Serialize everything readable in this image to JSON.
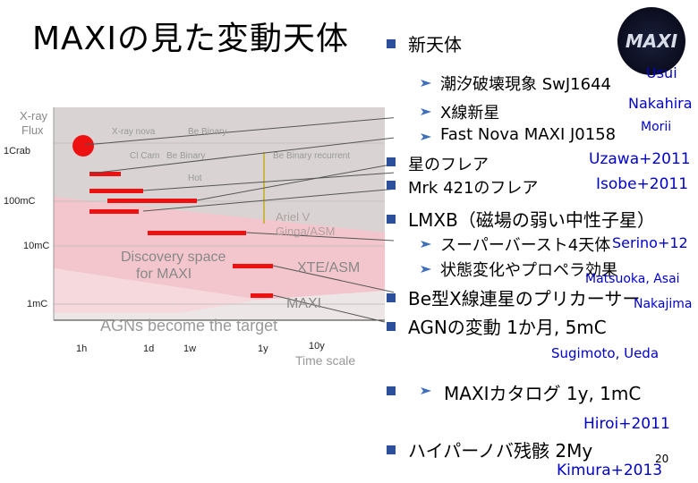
{
  "title": "MAXIの見た変動天体",
  "right": {
    "new_objects": "新天体",
    "tidal": "潮汐破壊現象 SwJ1644",
    "usui": "Usui",
    "xnova": "X線新星",
    "nakahira": "Nakahira",
    "morii": "Morii",
    "fast_nova": "Fast Nova MAXI J0158",
    "star_flare": "星のフレア",
    "uzawa": "Uzawa+2011",
    "mrk": "Mrk 421のフレア",
    "isobe": "Isobe+2011",
    "lmxb": "LMXB（磁場の弱い中性子星）",
    "superburst": "スーパーバースト4天体",
    "serino": "Serino+12",
    "state_change": "状態変化やプロペラ効果",
    "matsuoka": "Matsuoka, Asai",
    "bex": "Be型X線連星のプリカーサー",
    "nakajima": "Nakajima",
    "agn": "AGNの変動 1か月, 5mC",
    "sugimoto": "Sugimoto, Ueda",
    "catalog": "MAXIカタログ 1y, 1mC",
    "hiroi": "Hiroi+2011",
    "hypernova": "ハイパーノバ残骸 2My",
    "page": "20",
    "kimura": "Kimura+2013"
  },
  "logo_text": "MAXI",
  "chart": {
    "ylabel_1": "X-ray",
    "ylabel_2": "Flux",
    "yticks": [
      "1Crab",
      "100mC",
      "10mC",
      "1mC"
    ],
    "xticks": [
      "1h",
      "1d",
      "1w",
      "1y",
      "10y"
    ],
    "xlabel": "Time scale",
    "label_xray_nova": "X-ray nova",
    "label_be_binary": "Be Binary",
    "label_be_binary_recurrent": "Be Binary recurrent",
    "label_cl_cam": "Cl Cam",
    "label_hot": "Hot",
    "label_discovery_1": "Discovery space",
    "label_discovery_2": "for MAXI",
    "label_xte_asm": "XTE/ASM",
    "label_maxi": "MAXI",
    "label_ariel": "Ariel V",
    "label_ginga": "Ginga/ASM",
    "label_agn": "AGNs become the target"
  }
}
